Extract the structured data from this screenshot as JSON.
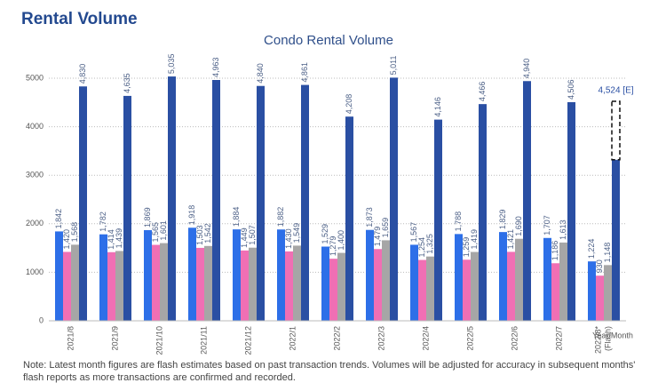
{
  "page_title": "Rental Volume",
  "note": "Note: Latest month figures are flash estimates based on past transaction trends. Volumes will be adjusted for accuracy in subsequent months' flash reports as more transactions are confirmed and recorded.",
  "chart_data": {
    "type": "bar",
    "title": "Condo Rental Volume",
    "x_label": "Year/Month",
    "categories": [
      "2021/8",
      "2021/9",
      "2021/10",
      "2021/11",
      "2021/12",
      "2022/1",
      "2022/2",
      "2022/3",
      "2022/4",
      "2022/5",
      "2022/6",
      "2022/7",
      "2022/8*\n(Flash)"
    ],
    "series": [
      {
        "color": "#2d6fe8",
        "values": [
          1842,
          1782,
          1869,
          1918,
          1884,
          1882,
          1529,
          1873,
          1567,
          1788,
          1829,
          1707,
          1224
        ],
        "value_labels": [
          "1,842",
          "1,782",
          "1,869",
          "1,918",
          "1,884",
          "1,882",
          "1,529",
          "1,873",
          "1,567",
          "1,788",
          "1,829",
          "1,707",
          "1,224"
        ]
      },
      {
        "color": "#f06fb4",
        "values": [
          1420,
          1414,
          1565,
          1503,
          1449,
          1430,
          1279,
          1479,
          1254,
          1259,
          1421,
          1186,
          930
        ],
        "value_labels": [
          "1,420",
          "1,414",
          "1,565",
          "1,503",
          "1,449",
          "1,430",
          "1,279",
          "1,479",
          "1,254",
          "1,259",
          "1,421",
          "1,186",
          "930"
        ]
      },
      {
        "color": "#a6a6a6",
        "values": [
          1568,
          1439,
          1601,
          1542,
          1507,
          1549,
          1400,
          1659,
          1325,
          1419,
          1690,
          1613,
          1148
        ],
        "value_labels": [
          "1,568",
          "1,439",
          "1,601",
          "1,542",
          "1,507",
          "1,549",
          "1,400",
          "1,659",
          "1,325",
          "1,419",
          "1,690",
          "1,613",
          "1,148"
        ]
      },
      {
        "color": "#2a4fa3",
        "values": [
          4830,
          4635,
          5035,
          4963,
          4840,
          4861,
          4208,
          5011,
          4146,
          4466,
          4940,
          4506,
          3320
        ],
        "value_labels": [
          "4,830",
          "4,635",
          "5,035",
          "4,963",
          "4,840",
          "4,861",
          "4,208",
          "5,011",
          "4,146",
          "4,466",
          "4,940",
          "4,506",
          null
        ]
      }
    ],
    "estimate": {
      "value": 4524,
      "label": "4,524 [E]"
    },
    "ylim": [
      0,
      5300
    ],
    "yticks": [
      0,
      1000,
      2000,
      3000,
      4000,
      5000
    ],
    "grid": true
  }
}
